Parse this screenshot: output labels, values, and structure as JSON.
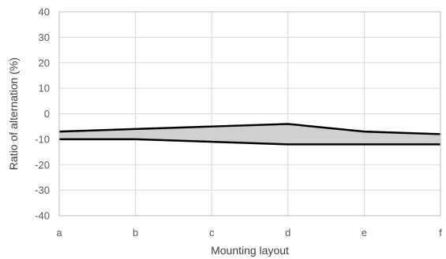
{
  "chart_data": {
    "type": "area",
    "categories": [
      "a",
      "b",
      "c",
      "d",
      "e",
      "f"
    ],
    "series": [
      {
        "values": [
          -7,
          -6,
          -5,
          -4,
          -7,
          -8
        ]
      },
      {
        "values": [
          -10,
          -10,
          -11,
          -12,
          -12,
          -12
        ]
      }
    ],
    "xlabel": "Mounting layout",
    "ylabel": "Ratio of alternation (%)",
    "ylim": [
      -40,
      40
    ],
    "yticks": [
      40,
      30,
      20,
      10,
      0,
      -10,
      -20,
      -30,
      -40
    ],
    "grid": true,
    "legend": "none",
    "colors": {
      "band": "#d0d0d0",
      "lines": "#000000",
      "grid": "#d9d9d9"
    }
  }
}
